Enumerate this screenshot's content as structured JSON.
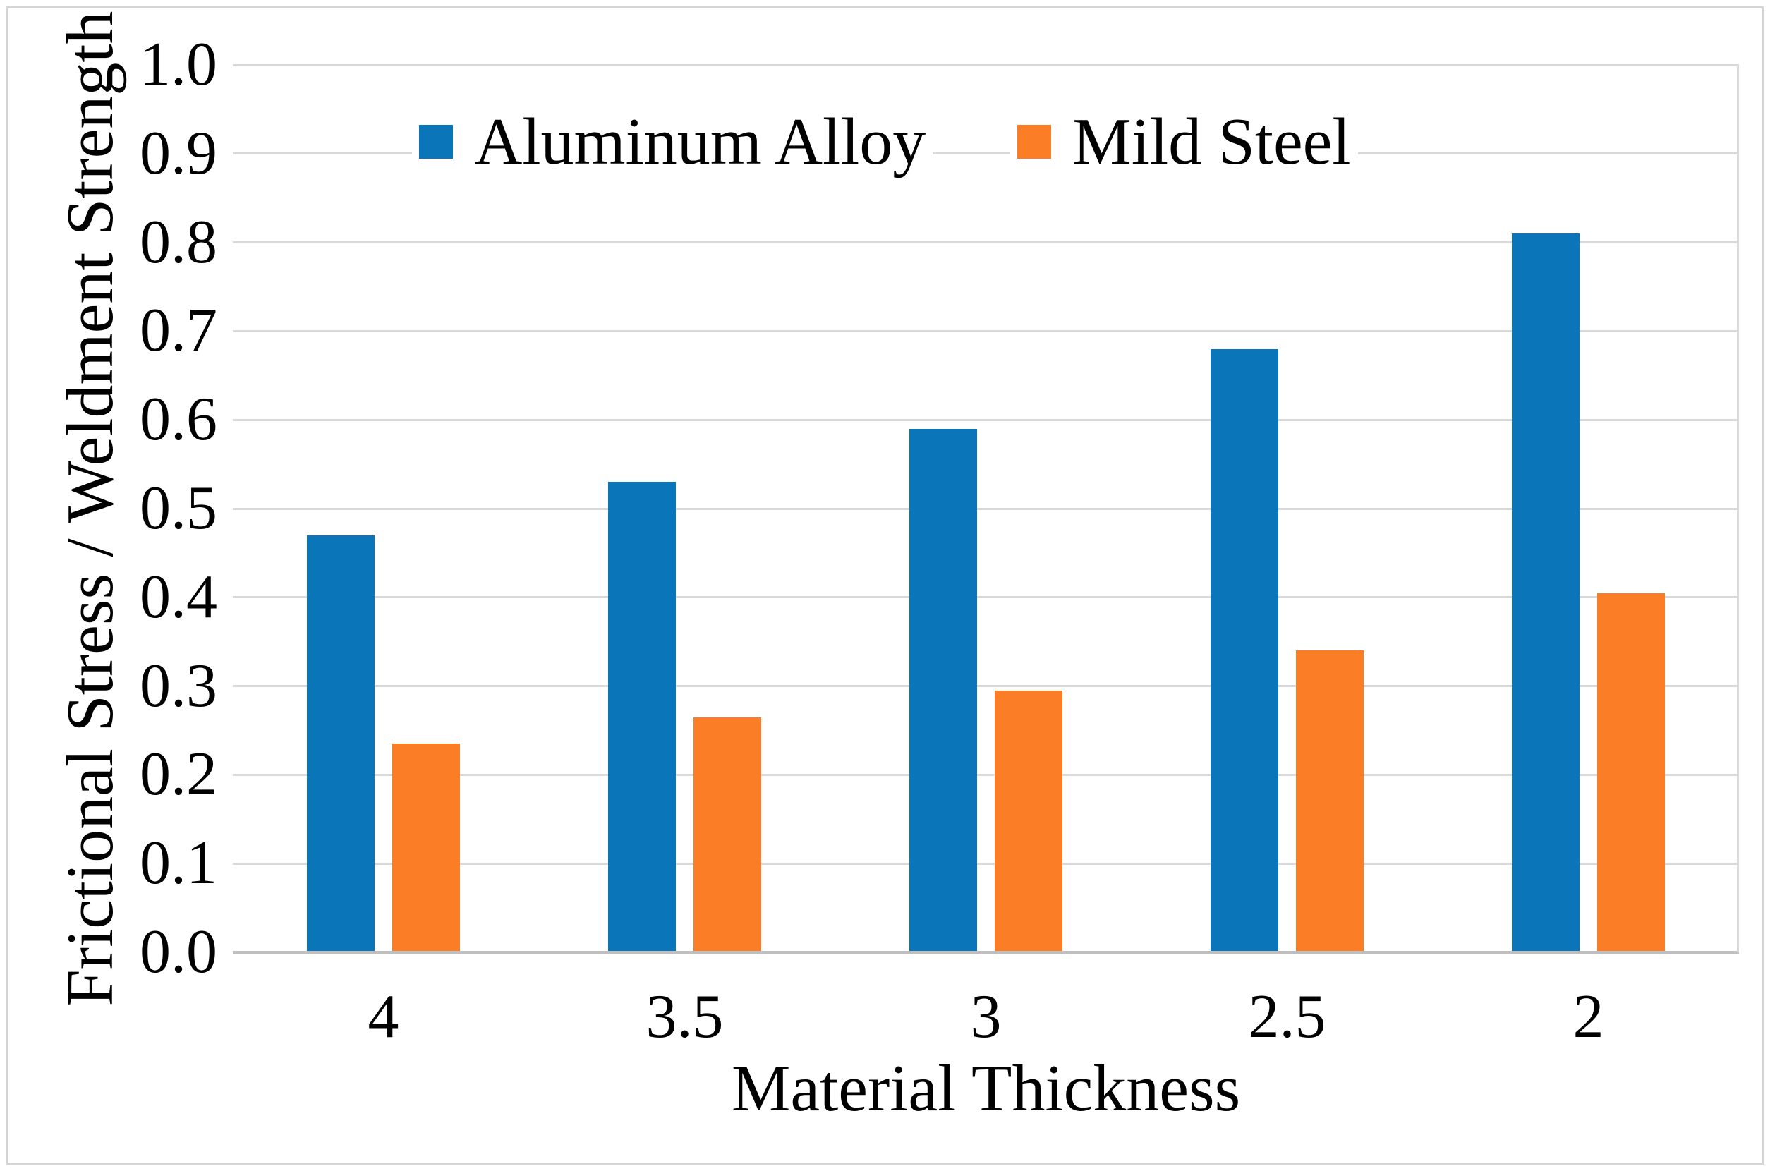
{
  "figure": {
    "background": "#ffffff",
    "border_color": "#d5d5d5"
  },
  "chart_data": {
    "type": "bar",
    "title": "",
    "categories": [
      "4",
      "3.5",
      "3",
      "2.5",
      "2"
    ],
    "series": [
      {
        "name": "Aluminum Alloy",
        "color": "#0b75b9",
        "values": [
          0.47,
          0.53,
          0.59,
          0.68,
          0.81
        ]
      },
      {
        "name": "Mild Steel",
        "color": "#fb7d26",
        "values": [
          0.235,
          0.265,
          0.295,
          0.34,
          0.405
        ]
      }
    ],
    "xlabel": "Material Thickness",
    "ylabel": "Frictional Stress / Weldment Strength",
    "ylim": [
      0.0,
      1.0
    ],
    "y_tick_labels": [
      "0.0",
      "0.1",
      "0.2",
      "0.3",
      "0.4",
      "0.5",
      "0.6",
      "0.7",
      "0.8",
      "0.9",
      "1.0"
    ],
    "grid": "horizontal",
    "gridline_color": "#d9d9d9",
    "axis_line_color": "#bfbfbf",
    "legend_position": "top-center",
    "text_color": "#000000"
  }
}
